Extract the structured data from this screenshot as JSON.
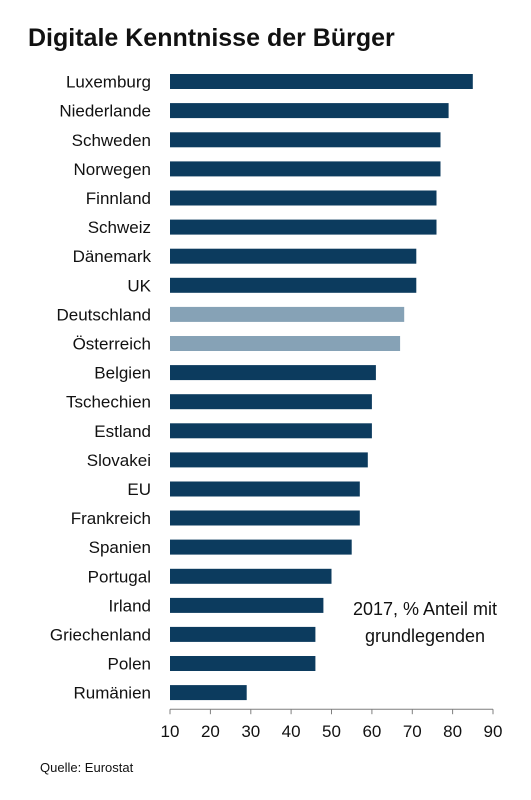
{
  "chart_data": {
    "type": "bar",
    "orientation": "horizontal",
    "title": "Digitale Kenntnisse der Bürger",
    "annotation": "2017, % Anteil mit grundlegenden",
    "source": "Quelle: Eurostat",
    "categories": [
      "Luxemburg",
      "Niederlande",
      "Schweden",
      "Norwegen",
      "Finnland",
      "Schweiz",
      "Dänemark",
      "UK",
      "Deutschland",
      "Österreich",
      "Belgien",
      "Tschechien",
      "Estland",
      "Slovakei",
      "EU",
      "Frankreich",
      "Spanien",
      "Portugal",
      "Irland",
      "Griechenland",
      "Polen",
      "Rumänien"
    ],
    "values": [
      85,
      79,
      77,
      77,
      76,
      76,
      71,
      71,
      68,
      67,
      61,
      60,
      60,
      59,
      57,
      57,
      55,
      50,
      48,
      46,
      46,
      29
    ],
    "highlighted": [
      "Deutschland",
      "Österreich"
    ],
    "xlim": [
      10,
      90
    ],
    "xticks": [
      10,
      20,
      30,
      40,
      50,
      60,
      70,
      80,
      90
    ],
    "colors": {
      "default": "#0c3b5e",
      "highlight": "#86a2b6",
      "axis": "#7f7f7f"
    }
  }
}
